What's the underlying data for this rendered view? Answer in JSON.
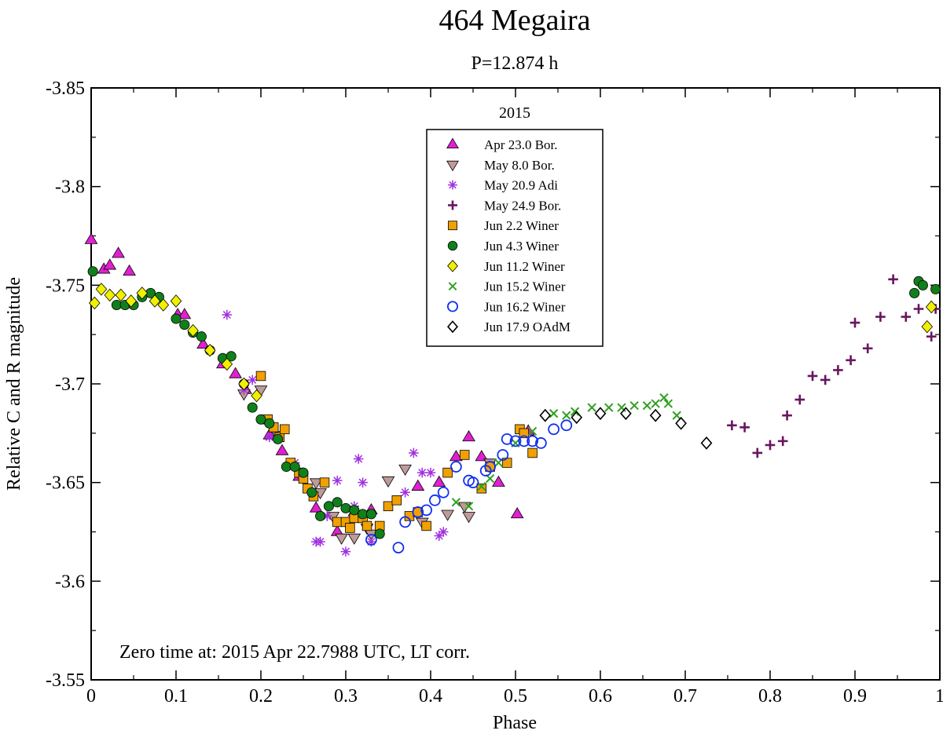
{
  "chart_data": {
    "type": "scatter",
    "title": "464 Megaira",
    "subtitle": "P=12.874 h",
    "xlabel": "Phase",
    "ylabel": "Relative C and R magnitude",
    "xlim": [
      0,
      1
    ],
    "ylim": [
      -3.85,
      -3.55
    ],
    "y_inverted": true,
    "x_ticks": [
      0,
      0.1,
      0.2,
      0.3,
      0.4,
      0.5,
      0.6,
      0.7,
      0.8,
      0.9,
      1
    ],
    "x_tick_labels": [
      "0",
      "0.1",
      "0.2",
      "0.3",
      "0.4",
      "0.5",
      "0.6",
      "0.7",
      "0.8",
      "0.9",
      "1"
    ],
    "y_ticks": [
      -3.85,
      -3.8,
      -3.75,
      -3.7,
      -3.65,
      -3.6,
      -3.55
    ],
    "y_tick_labels": [
      "-3.85",
      "-3.8",
      "-3.75",
      "-3.7",
      "-3.65",
      "-3.6",
      "-3.55"
    ],
    "legend_title": "2015",
    "legend_position": "top-center",
    "annotation": "Zero time at: 2015 Apr 22.7988 UTC,  LT corr.",
    "series": [
      {
        "name": "Apr 23.0 Bor.",
        "marker": "triangle-up",
        "color": "#e020d0",
        "filled": true,
        "x": [
          0.0,
          0.015,
          0.022,
          0.032,
          0.045,
          0.102,
          0.11,
          0.132,
          0.155,
          0.17,
          0.182,
          0.21,
          0.225,
          0.245,
          0.265,
          0.29,
          0.31,
          0.33,
          0.385,
          0.41,
          0.43,
          0.445,
          0.46,
          0.48,
          0.502,
          0.515
        ],
        "y": [
          -3.773,
          -3.758,
          -3.76,
          -3.766,
          -3.757,
          -3.735,
          -3.735,
          -3.72,
          -3.71,
          -3.705,
          -3.697,
          -3.674,
          -3.666,
          -3.653,
          -3.637,
          -3.625,
          -3.635,
          -3.636,
          -3.648,
          -3.65,
          -3.663,
          -3.673,
          -3.663,
          -3.65,
          -3.634,
          -3.676
        ]
      },
      {
        "name": "May 8.0 Bor.",
        "marker": "triangle-down",
        "color": "#c09a9a",
        "filled": true,
        "x": [
          0.18,
          0.2,
          0.22,
          0.265,
          0.27,
          0.285,
          0.295,
          0.31,
          0.325,
          0.33,
          0.35,
          0.37,
          0.39,
          0.42,
          0.44,
          0.445,
          0.47
        ],
        "y": [
          -3.695,
          -3.697,
          -3.674,
          -3.65,
          -3.645,
          -3.633,
          -3.622,
          -3.622,
          -3.627,
          -3.624,
          -3.651,
          -3.657,
          -3.63,
          -3.634,
          -3.638,
          -3.633,
          -3.66
        ]
      },
      {
        "name": "May 20.9 Adi",
        "marker": "asterisk",
        "color": "#a030e0",
        "filled": false,
        "x": [
          0.16,
          0.165,
          0.18,
          0.19,
          0.21,
          0.24,
          0.265,
          0.27,
          0.278,
          0.29,
          0.3,
          0.31,
          0.315,
          0.32,
          0.33,
          0.37,
          0.38,
          0.39,
          0.4,
          0.41,
          0.415
        ],
        "y": [
          -3.735,
          -3.714,
          -3.697,
          -3.702,
          -3.673,
          -3.66,
          -3.62,
          -3.62,
          -3.633,
          -3.651,
          -3.615,
          -3.638,
          -3.662,
          -3.65,
          -3.62,
          -3.645,
          -3.665,
          -3.655,
          -3.655,
          -3.623,
          -3.625
        ]
      },
      {
        "name": "May 24.9 Bor.",
        "marker": "plus",
        "color": "#6a1560",
        "filled": false,
        "x": [
          0.755,
          0.77,
          0.785,
          0.8,
          0.815,
          0.82,
          0.835,
          0.85,
          0.865,
          0.88,
          0.895,
          0.9,
          0.915,
          0.93,
          0.945,
          0.96,
          0.975,
          0.99,
          0.995
        ],
        "y": [
          -3.679,
          -3.678,
          -3.665,
          -3.669,
          -3.671,
          -3.684,
          -3.692,
          -3.704,
          -3.702,
          -3.707,
          -3.712,
          -3.731,
          -3.718,
          -3.734,
          -3.753,
          -3.734,
          -3.738,
          -3.724,
          -3.738
        ]
      },
      {
        "name": "Jun 2.2 Winer",
        "marker": "square",
        "color": "#f0a000",
        "filled": true,
        "x": [
          0.2,
          0.208,
          0.215,
          0.222,
          0.228,
          0.235,
          0.245,
          0.25,
          0.255,
          0.262,
          0.275,
          0.29,
          0.3,
          0.305,
          0.31,
          0.32,
          0.325,
          0.34,
          0.35,
          0.36,
          0.375,
          0.385,
          0.395,
          0.42,
          0.44,
          0.46,
          0.47,
          0.49,
          0.505,
          0.51,
          0.52
        ],
        "y": [
          -3.704,
          -3.682,
          -3.678,
          -3.673,
          -3.677,
          -3.66,
          -3.655,
          -3.652,
          -3.647,
          -3.643,
          -3.65,
          -3.63,
          -3.63,
          -3.627,
          -3.632,
          -3.632,
          -3.628,
          -3.628,
          -3.638,
          -3.641,
          -3.633,
          -3.635,
          -3.628,
          -3.655,
          -3.664,
          -3.647,
          -3.658,
          -3.66,
          -3.677,
          -3.675,
          -3.665
        ]
      },
      {
        "name": "Jun 4.3 Winer",
        "marker": "circle",
        "color": "#10801a",
        "filled": true,
        "x": [
          0.002,
          0.03,
          0.04,
          0.05,
          0.06,
          0.07,
          0.08,
          0.1,
          0.11,
          0.12,
          0.13,
          0.14,
          0.155,
          0.165,
          0.18,
          0.19,
          0.2,
          0.21,
          0.22,
          0.23,
          0.24,
          0.25,
          0.26,
          0.27,
          0.28,
          0.29,
          0.3,
          0.31,
          0.32,
          0.33,
          0.34,
          0.97,
          0.975,
          0.98,
          0.995
        ],
        "y": [
          -3.757,
          -3.74,
          -3.74,
          -3.74,
          -3.744,
          -3.746,
          -3.744,
          -3.733,
          -3.73,
          -3.726,
          -3.724,
          -3.717,
          -3.713,
          -3.714,
          -3.7,
          -3.688,
          -3.682,
          -3.68,
          -3.672,
          -3.658,
          -3.658,
          -3.655,
          -3.645,
          -3.633,
          -3.638,
          -3.64,
          -3.637,
          -3.636,
          -3.634,
          -3.634,
          -3.624,
          -3.746,
          -3.752,
          -3.75,
          -3.748
        ]
      },
      {
        "name": "Jun 11.2 Winer",
        "marker": "diamond",
        "color": "#f0f000",
        "filled": true,
        "x": [
          0.004,
          0.012,
          0.022,
          0.035,
          0.047,
          0.06,
          0.075,
          0.085,
          0.1,
          0.12,
          0.14,
          0.16,
          0.18,
          0.195,
          0.985,
          0.99
        ],
        "y": [
          -3.741,
          -3.748,
          -3.745,
          -3.745,
          -3.742,
          -3.746,
          -3.742,
          -3.74,
          -3.742,
          -3.727,
          -3.717,
          -3.71,
          -3.7,
          -3.694,
          -3.729,
          -3.739
        ]
      },
      {
        "name": "Jun 15.2 Winer",
        "marker": "x",
        "color": "#30a020",
        "filled": false,
        "x": [
          0.43,
          0.445,
          0.46,
          0.47,
          0.48,
          0.5,
          0.52,
          0.545,
          0.56,
          0.57,
          0.59,
          0.61,
          0.625,
          0.64,
          0.655,
          0.665,
          0.675,
          0.68,
          0.69
        ],
        "y": [
          -3.64,
          -3.638,
          -3.648,
          -3.652,
          -3.66,
          -3.67,
          -3.676,
          -3.685,
          -3.684,
          -3.686,
          -3.688,
          -3.688,
          -3.688,
          -3.689,
          -3.689,
          -3.69,
          -3.693,
          -3.69,
          -3.684
        ]
      },
      {
        "name": "Jun 16.2 Winer",
        "marker": "circle",
        "color": "#1030f0",
        "filled": false,
        "x": [
          0.33,
          0.362,
          0.37,
          0.385,
          0.395,
          0.405,
          0.415,
          0.43,
          0.445,
          0.45,
          0.465,
          0.47,
          0.485,
          0.49,
          0.5,
          0.51,
          0.52,
          0.53,
          0.545,
          0.56
        ],
        "y": [
          -3.621,
          -3.617,
          -3.63,
          -3.635,
          -3.636,
          -3.641,
          -3.645,
          -3.658,
          -3.651,
          -3.65,
          -3.656,
          -3.658,
          -3.664,
          -3.672,
          -3.671,
          -3.671,
          -3.671,
          -3.67,
          -3.677,
          -3.679
        ]
      },
      {
        "name": "Jun 17.9 OAdM",
        "marker": "diamond",
        "color": "#000000",
        "filled": false,
        "x": [
          0.535,
          0.572,
          0.6,
          0.63,
          0.665,
          0.695,
          0.725
        ],
        "y": [
          -3.684,
          -3.683,
          -3.685,
          -3.685,
          -3.684,
          -3.68,
          -3.67
        ]
      }
    ]
  }
}
